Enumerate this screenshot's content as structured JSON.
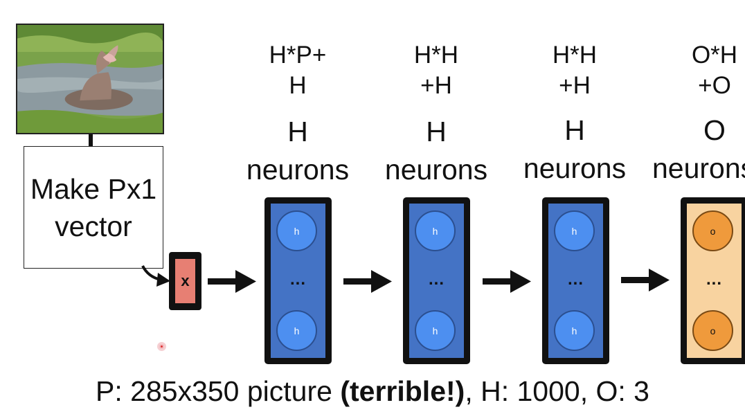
{
  "image": {
    "description": "photo of a hippopotamus with open mouth standing in water"
  },
  "make_box": {
    "label": "Make Px1 vector"
  },
  "input": {
    "label": "x",
    "color": "#e77f73"
  },
  "layers": [
    {
      "params_line1": "H*P+",
      "params_line2": "H",
      "count": "H",
      "units": "neurons",
      "node_label": "h",
      "dots": "...",
      "color": "#4473c5"
    },
    {
      "params_line1": "H*H",
      "params_line2": "+H",
      "count": "H",
      "units": "neurons",
      "node_label": "h",
      "dots": "...",
      "color": "#4473c5"
    },
    {
      "params_line1": "H*H",
      "params_line2": "+H",
      "count": "H",
      "units": "neurons",
      "node_label": "h",
      "dots": "...",
      "color": "#4473c5"
    },
    {
      "params_line1": "O*H",
      "params_line2": "+O",
      "count": "O",
      "units": "neurons",
      "node_label": "o",
      "dots": "...",
      "color": "#f8d3a0"
    }
  ],
  "caption": {
    "part1": "P: 285x350 picture ",
    "emphasis": "(terrible!)",
    "part2": ", H: 1000, O: 3"
  }
}
